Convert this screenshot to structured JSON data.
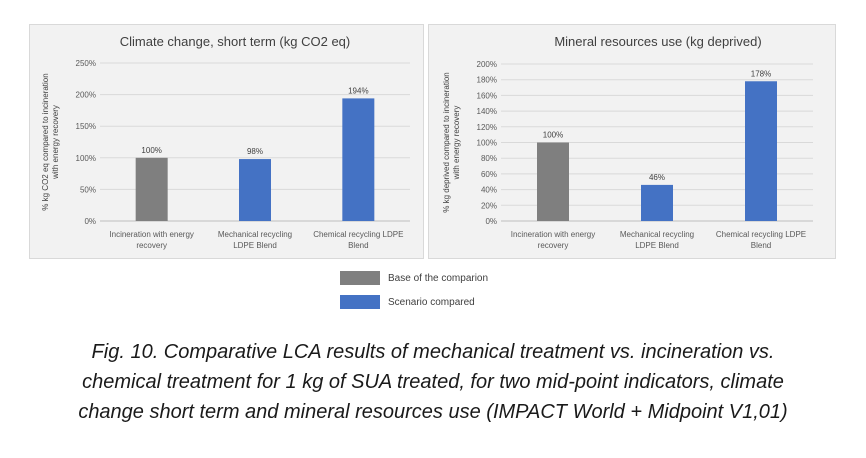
{
  "colors": {
    "base": "#7f7f7f",
    "scenario": "#4472c4"
  },
  "chart_data": [
    {
      "type": "bar",
      "title": "Climate change, short term (kg CO2 eq)",
      "ylabel_lines": [
        "% kg CO2 eq compared to incineration",
        "with energy recovery"
      ],
      "categories": [
        [
          "Incineration with energy",
          "recovery"
        ],
        [
          "Mechanical recycling",
          "LDPE Blend"
        ],
        [
          "Chemical recycling LDPE",
          "Blend"
        ]
      ],
      "values": [
        100,
        98,
        194
      ],
      "data_labels": [
        "100%",
        "98%",
        "194%"
      ],
      "series_index": [
        0,
        1,
        1
      ],
      "ylim": [
        0,
        250
      ],
      "yticks": [
        0,
        50,
        100,
        150,
        200,
        250
      ],
      "ytick_labels": [
        "0%",
        "50%",
        "100%",
        "150%",
        "200%",
        "250%"
      ],
      "grid": true
    },
    {
      "type": "bar",
      "title": "Mineral resources use (kg deprived)",
      "ylabel_lines": [
        "% kg deprived compared to incineration",
        "with energy recovery"
      ],
      "categories": [
        [
          "Incineration with energy",
          "recovery"
        ],
        [
          "Mechanical recycling",
          "LDPE Blend"
        ],
        [
          "Chemical recycling LDPE",
          "Blend"
        ]
      ],
      "values": [
        100,
        46,
        178
      ],
      "data_labels": [
        "100%",
        "46%",
        "178%"
      ],
      "series_index": [
        0,
        1,
        1
      ],
      "ylim": [
        0,
        200
      ],
      "yticks": [
        0,
        20,
        40,
        60,
        80,
        100,
        120,
        140,
        160,
        180,
        200
      ],
      "ytick_labels": [
        "0%",
        "20%",
        "40%",
        "60%",
        "80%",
        "100%",
        "120%",
        "140%",
        "160%",
        "180%",
        "200%"
      ],
      "grid": true
    }
  ],
  "legend": {
    "placement": "bottom-center",
    "items": [
      {
        "label": "Base of the comparion",
        "color": "#7f7f7f"
      },
      {
        "label": "Scenario compared",
        "color": "#4472c4"
      }
    ]
  },
  "caption": {
    "lines": [
      "Fig. 10. Comparative LCA results of mechanical treatment vs. incineration vs.",
      "chemical treatment for 1 kg of SUA treated, for two mid-point indicators, climate",
      "change short term and mineral resources use (IMPACT World + Midpoint V1,01)"
    ]
  }
}
